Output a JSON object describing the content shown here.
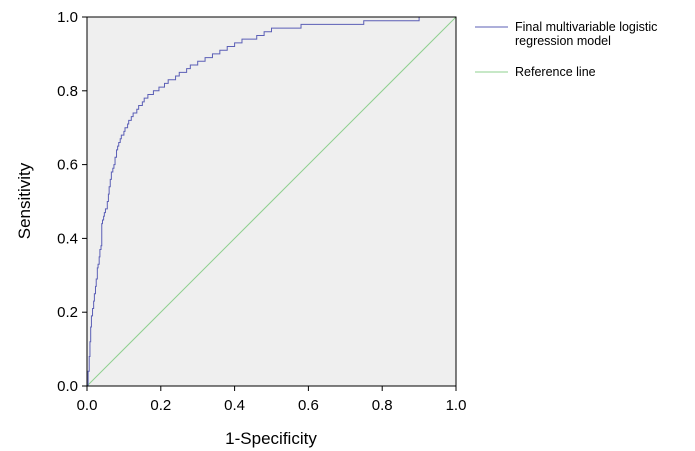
{
  "chart_data": {
    "type": "line",
    "title": "",
    "xlabel": "1-Specificity",
    "ylabel": "Sensitivity",
    "xlim": [
      0,
      1
    ],
    "ylim": [
      0,
      1
    ],
    "xticks": [
      "0.0",
      "0.2",
      "0.4",
      "0.6",
      "0.8",
      "1.0"
    ],
    "yticks": [
      "0.0",
      "0.2",
      "0.4",
      "0.6",
      "0.8",
      "1.0"
    ],
    "grid": false,
    "plot_background": "#efefef",
    "legend_position": "right",
    "series": [
      {
        "name": "Final multivariable logistic regression model",
        "legend_lines": [
          "Final multivariable logistic",
          "regression model"
        ],
        "color": "#5b5fb6",
        "x": [
          0,
          0.003,
          0.006,
          0.008,
          0.01,
          0.012,
          0.015,
          0.018,
          0.02,
          0.023,
          0.025,
          0.028,
          0.03,
          0.033,
          0.035,
          0.038,
          0.04,
          0.042,
          0.045,
          0.047,
          0.05,
          0.053,
          0.055,
          0.058,
          0.06,
          0.063,
          0.066,
          0.07,
          0.073,
          0.076,
          0.08,
          0.083,
          0.086,
          0.09,
          0.093,
          0.096,
          0.1,
          0.103,
          0.106,
          0.11,
          0.113,
          0.116,
          0.12,
          0.125,
          0.13,
          0.135,
          0.14,
          0.145,
          0.15,
          0.155,
          0.16,
          0.165,
          0.17,
          0.175,
          0.18,
          0.185,
          0.19,
          0.195,
          0.2,
          0.21,
          0.22,
          0.23,
          0.24,
          0.25,
          0.26,
          0.27,
          0.28,
          0.29,
          0.3,
          0.31,
          0.32,
          0.33,
          0.34,
          0.35,
          0.36,
          0.37,
          0.38,
          0.39,
          0.4,
          0.42,
          0.44,
          0.46,
          0.48,
          0.5,
          0.52,
          0.54,
          0.56,
          0.58,
          0.6,
          0.65,
          0.7,
          0.75,
          0.8,
          0.85,
          0.9,
          0.95,
          1.0
        ],
        "y": [
          0,
          0.04,
          0.08,
          0.12,
          0.16,
          0.19,
          0.21,
          0.23,
          0.25,
          0.27,
          0.29,
          0.32,
          0.33,
          0.35,
          0.37,
          0.38,
          0.44,
          0.45,
          0.46,
          0.47,
          0.48,
          0.48,
          0.5,
          0.52,
          0.54,
          0.56,
          0.58,
          0.59,
          0.6,
          0.62,
          0.64,
          0.65,
          0.66,
          0.67,
          0.68,
          0.68,
          0.69,
          0.7,
          0.7,
          0.71,
          0.72,
          0.72,
          0.73,
          0.74,
          0.74,
          0.75,
          0.76,
          0.76,
          0.77,
          0.78,
          0.78,
          0.79,
          0.79,
          0.79,
          0.8,
          0.8,
          0.8,
          0.81,
          0.81,
          0.82,
          0.83,
          0.83,
          0.84,
          0.85,
          0.85,
          0.86,
          0.87,
          0.87,
          0.88,
          0.88,
          0.89,
          0.89,
          0.9,
          0.9,
          0.91,
          0.91,
          0.92,
          0.92,
          0.93,
          0.94,
          0.94,
          0.95,
          0.96,
          0.97,
          0.97,
          0.97,
          0.97,
          0.98,
          0.98,
          0.98,
          0.98,
          0.99,
          0.99,
          0.99,
          1.0,
          1.0,
          1.0
        ]
      },
      {
        "name": "Reference line",
        "legend_lines": [
          "Reference line"
        ],
        "color": "#8fd08f",
        "x": [
          0,
          1
        ],
        "y": [
          0,
          1
        ]
      }
    ]
  }
}
